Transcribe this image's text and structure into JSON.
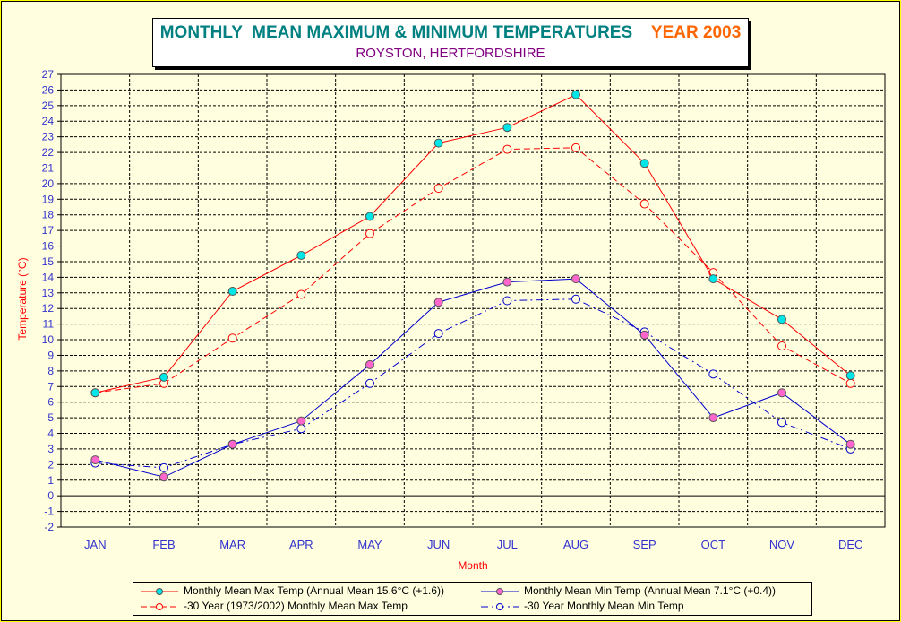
{
  "title": {
    "main": "MONTHLY  MEAN MAXIMUM & MINIMUM TEMPERATURES",
    "year": "YEAR 2003",
    "subtitle": "ROYSTON, HERTFORDSHIRE",
    "main_color": "#008080",
    "year_color": "#ff6600",
    "subtitle_color": "#800080"
  },
  "chart_data": {
    "type": "line",
    "title": "MONTHLY  MEAN MAXIMUM & MINIMUM TEMPERATURES    YEAR 2003",
    "subtitle": "ROYSTON, HERTFORDSHIRE",
    "xlabel": "Month",
    "ylabel": "Temperature (°C)",
    "ylim": [
      -2,
      27
    ],
    "yticks": [
      -2,
      -1,
      0,
      1,
      2,
      3,
      4,
      5,
      6,
      7,
      8,
      9,
      10,
      11,
      12,
      13,
      14,
      15,
      16,
      17,
      18,
      19,
      20,
      21,
      22,
      23,
      24,
      25,
      26,
      27
    ],
    "grid": true,
    "legend_position": "bottom",
    "categories": [
      "JAN",
      "FEB",
      "MAR",
      "APR",
      "MAY",
      "JUN",
      "JUL",
      "AUG",
      "SEP",
      "OCT",
      "NOV",
      "DEC"
    ],
    "series": [
      {
        "name": "Monthly Mean Max Temp (Annual Mean 15.6°C (+1.6))",
        "color": "#ff0000",
        "marker_fill": "#00e5e5",
        "dash": "solid",
        "values": [
          6.6,
          7.6,
          13.1,
          15.4,
          17.9,
          22.6,
          23.6,
          25.7,
          21.3,
          13.9,
          11.3,
          7.7
        ]
      },
      {
        "name": "Monthly Mean Min Temp (Annual Mean 7.1°C (+0.4))",
        "color": "#0000cc",
        "marker_fill": "#ff66cc",
        "dash": "solid",
        "values": [
          2.3,
          1.2,
          3.3,
          4.8,
          8.4,
          12.4,
          13.7,
          13.9,
          10.3,
          5.0,
          6.6,
          3.3
        ]
      },
      {
        "name": "-30 Year (1973/2002) Monthly Mean Max Temp",
        "color": "#ff0000",
        "marker_fill": "none",
        "dash": "dashed",
        "values": [
          6.6,
          7.2,
          10.1,
          12.9,
          16.8,
          19.7,
          22.2,
          22.3,
          18.7,
          14.3,
          9.6,
          7.2
        ]
      },
      {
        "name": "-30 Year Monthly Mean Min Temp",
        "color": "#0000cc",
        "marker_fill": "none",
        "dash": "dashdot",
        "values": [
          2.1,
          1.8,
          3.3,
          4.3,
          7.2,
          10.4,
          12.5,
          12.6,
          10.5,
          7.8,
          4.7,
          3.0
        ]
      }
    ]
  },
  "colors": {
    "background": "#ffff00",
    "plot_background": "#ffffe0",
    "axis_label_color": "#ff0000",
    "tick_label_color": "#3333cc"
  }
}
